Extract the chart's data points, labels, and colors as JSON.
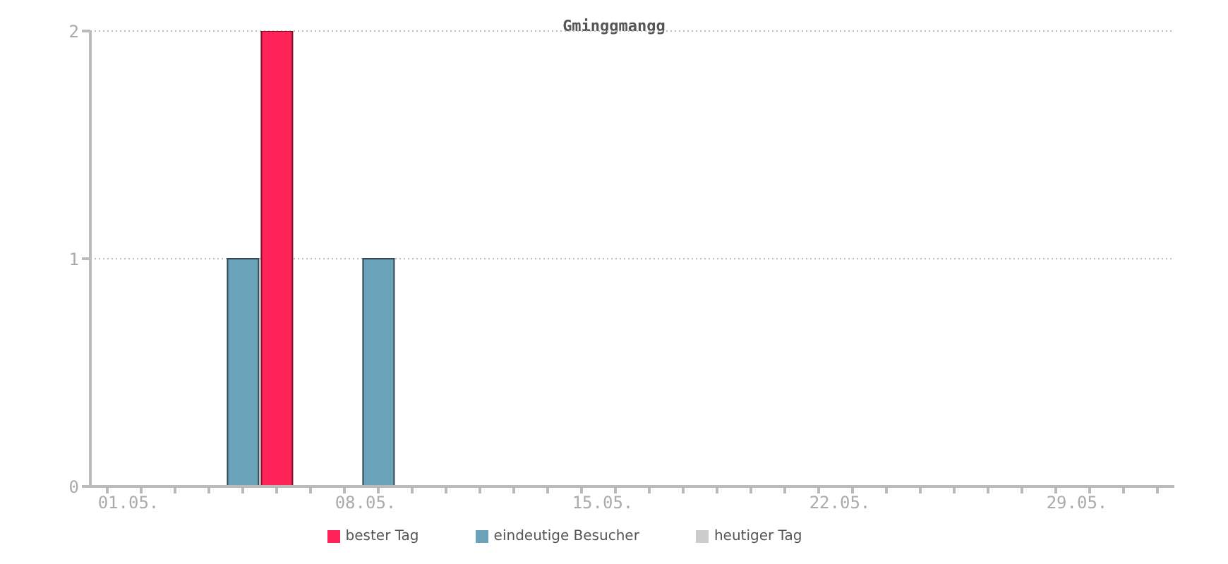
{
  "chart_data": {
    "type": "bar",
    "title": "Gminggmangg",
    "categories": [
      null,
      "01.05.",
      null,
      null,
      null,
      null,
      null,
      null,
      "08.05.",
      null,
      null,
      null,
      null,
      null,
      null,
      "15.05.",
      null,
      null,
      null,
      null,
      null,
      null,
      "22.05.",
      null,
      null,
      null,
      null,
      null,
      null,
      "29.05.",
      null,
      null
    ],
    "series": [
      {
        "name": "eindeutige Besucher",
        "color": "#6aa2ba",
        "values": [
          null,
          null,
          null,
          null,
          1,
          null,
          null,
          null,
          1,
          null,
          null,
          null,
          null,
          null,
          null,
          null,
          null,
          null,
          null,
          null,
          null,
          null,
          null,
          null,
          null,
          null,
          null,
          null,
          null,
          null,
          null,
          null
        ]
      },
      {
        "name": "bester Tag",
        "color": "#ff2358",
        "values": [
          null,
          null,
          null,
          null,
          null,
          2,
          null,
          null,
          null,
          null,
          null,
          null,
          null,
          null,
          null,
          null,
          null,
          null,
          null,
          null,
          null,
          null,
          null,
          null,
          null,
          null,
          null,
          null,
          null,
          null,
          null,
          null
        ]
      },
      {
        "name": "heutiger Tag",
        "color": "#cccccc",
        "values": [
          null,
          null,
          null,
          null,
          null,
          null,
          null,
          null,
          null,
          null,
          null,
          null,
          null,
          null,
          null,
          null,
          null,
          null,
          null,
          null,
          null,
          null,
          null,
          null,
          null,
          null,
          null,
          null,
          null,
          null,
          null,
          null
        ]
      }
    ],
    "ylim": [
      0,
      2
    ],
    "yticks": [
      0,
      1,
      2
    ],
    "grid": "y",
    "legend": "bottom"
  }
}
